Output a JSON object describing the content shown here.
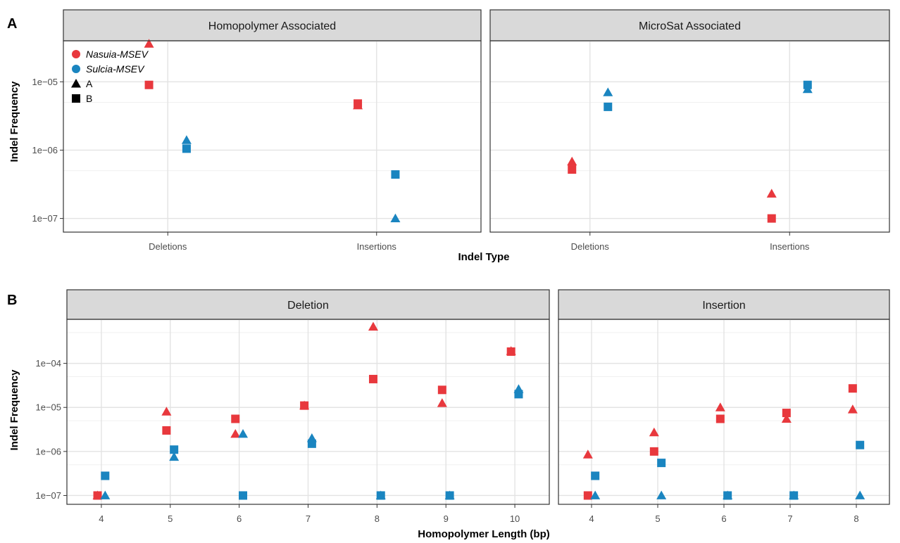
{
  "colors": {
    "nasuia": "#e8383d",
    "sulcia": "#1a85c0"
  },
  "legend": {
    "color_entries": [
      {
        "label": "Nasuia-MSEV",
        "color": "#e8383d"
      },
      {
        "label": "Sulcia-MSEV",
        "color": "#1a85c0"
      }
    ],
    "shape_entries": [
      {
        "label": "A",
        "shape": "triangle"
      },
      {
        "label": "B",
        "shape": "square"
      }
    ]
  },
  "chart_data": [
    {
      "panel_label": "A",
      "type": "scatter",
      "y_scale": "log10",
      "ylim": [
        1e-07,
        5e-05
      ],
      "ylabel": "Indel Frequency",
      "xlabel": "Indel Type",
      "y_ticks": [
        "1e−07",
        "1e−06",
        "1e−05"
      ],
      "categories": [
        "Deletions",
        "Insertions"
      ],
      "facets": [
        {
          "title": "Homopolymer Associated",
          "points": [
            {
              "x": "Deletions",
              "series": "Nasuia-MSEV",
              "replicate": "A",
              "y": 3.6e-05
            },
            {
              "x": "Deletions",
              "series": "Nasuia-MSEV",
              "replicate": "B",
              "y": 9e-06
            },
            {
              "x": "Deletions",
              "series": "Sulcia-MSEV",
              "replicate": "A",
              "y": 1.4e-06
            },
            {
              "x": "Deletions",
              "series": "Sulcia-MSEV",
              "replicate": "B",
              "y": 1.05e-06
            },
            {
              "x": "Insertions",
              "series": "Nasuia-MSEV",
              "replicate": "A",
              "y": 4.5e-06
            },
            {
              "x": "Insertions",
              "series": "Nasuia-MSEV",
              "replicate": "B",
              "y": 4.8e-06
            },
            {
              "x": "Insertions",
              "series": "Sulcia-MSEV",
              "replicate": "A",
              "y": 1e-07
            },
            {
              "x": "Insertions",
              "series": "Sulcia-MSEV",
              "replicate": "B",
              "y": 4.4e-07
            }
          ]
        },
        {
          "title": "MicroSat Associated",
          "points": [
            {
              "x": "Deletions",
              "series": "Nasuia-MSEV",
              "replicate": "A",
              "y": 6.8e-07
            },
            {
              "x": "Deletions",
              "series": "Nasuia-MSEV",
              "replicate": "B",
              "y": 5.2e-07
            },
            {
              "x": "Deletions",
              "series": "Sulcia-MSEV",
              "replicate": "A",
              "y": 7e-06
            },
            {
              "x": "Deletions",
              "series": "Sulcia-MSEV",
              "replicate": "B",
              "y": 4.3e-06
            },
            {
              "x": "Insertions",
              "series": "Nasuia-MSEV",
              "replicate": "A",
              "y": 2.3e-07
            },
            {
              "x": "Insertions",
              "series": "Nasuia-MSEV",
              "replicate": "B",
              "y": 1e-07
            },
            {
              "x": "Insertions",
              "series": "Sulcia-MSEV",
              "replicate": "A",
              "y": 7.8e-06
            },
            {
              "x": "Insertions",
              "series": "Sulcia-MSEV",
              "replicate": "B",
              "y": 9e-06
            }
          ]
        }
      ]
    },
    {
      "panel_label": "B",
      "type": "scatter",
      "y_scale": "log10",
      "ylim": [
        1e-07,
        0.001
      ],
      "ylabel": "Indel Frequency",
      "xlabel": "Homopolymer Length (bp)",
      "y_ticks": [
        "1e−07",
        "1e−06",
        "1e−05",
        "1e−04"
      ],
      "facets": [
        {
          "title": "Deletion",
          "x_ticks": [
            4,
            5,
            6,
            7,
            8,
            9,
            10
          ],
          "xlim": [
            3.5,
            10.5
          ],
          "points": [
            {
              "x": 4,
              "series": "Nasuia-MSEV",
              "replicate": "A",
              "y": 1e-07
            },
            {
              "x": 4,
              "series": "Nasuia-MSEV",
              "replicate": "B",
              "y": 1e-07
            },
            {
              "x": 4,
              "series": "Sulcia-MSEV",
              "replicate": "A",
              "y": 1e-07
            },
            {
              "x": 4,
              "series": "Sulcia-MSEV",
              "replicate": "B",
              "y": 2.8e-07
            },
            {
              "x": 5,
              "series": "Nasuia-MSEV",
              "replicate": "A",
              "y": 8e-06
            },
            {
              "x": 5,
              "series": "Nasuia-MSEV",
              "replicate": "B",
              "y": 3e-06
            },
            {
              "x": 5,
              "series": "Sulcia-MSEV",
              "replicate": "A",
              "y": 7.5e-07
            },
            {
              "x": 5,
              "series": "Sulcia-MSEV",
              "replicate": "B",
              "y": 1.1e-06
            },
            {
              "x": 6,
              "series": "Nasuia-MSEV",
              "replicate": "A",
              "y": 2.5e-06
            },
            {
              "x": 6,
              "series": "Nasuia-MSEV",
              "replicate": "B",
              "y": 5.5e-06
            },
            {
              "x": 6,
              "series": "Sulcia-MSEV",
              "replicate": "A",
              "y": 2.5e-06
            },
            {
              "x": 6,
              "series": "Sulcia-MSEV",
              "replicate": "B",
              "y": 1e-07
            },
            {
              "x": 7,
              "series": "Nasuia-MSEV",
              "replicate": "A",
              "y": 1.1e-05
            },
            {
              "x": 7,
              "series": "Nasuia-MSEV",
              "replicate": "B",
              "y": 1.1e-05
            },
            {
              "x": 7,
              "series": "Sulcia-MSEV",
              "replicate": "A",
              "y": 2e-06
            },
            {
              "x": 7,
              "series": "Sulcia-MSEV",
              "replicate": "B",
              "y": 1.5e-06
            },
            {
              "x": 8,
              "series": "Nasuia-MSEV",
              "replicate": "A",
              "y": 0.00068
            },
            {
              "x": 8,
              "series": "Nasuia-MSEV",
              "replicate": "B",
              "y": 4.4e-05
            },
            {
              "x": 8,
              "series": "Sulcia-MSEV",
              "replicate": "A",
              "y": 1e-07
            },
            {
              "x": 8,
              "series": "Sulcia-MSEV",
              "replicate": "B",
              "y": 1e-07
            },
            {
              "x": 9,
              "series": "Nasuia-MSEV",
              "replicate": "A",
              "y": 1.25e-05
            },
            {
              "x": 9,
              "series": "Nasuia-MSEV",
              "replicate": "B",
              "y": 2.5e-05
            },
            {
              "x": 9,
              "series": "Sulcia-MSEV",
              "replicate": "A",
              "y": 1e-07
            },
            {
              "x": 9,
              "series": "Sulcia-MSEV",
              "replicate": "B",
              "y": 1e-07
            },
            {
              "x": 10,
              "series": "Nasuia-MSEV",
              "replicate": "A",
              "y": 0.00019
            },
            {
              "x": 10,
              "series": "Nasuia-MSEV",
              "replicate": "B",
              "y": 0.000185
            },
            {
              "x": 10,
              "series": "Sulcia-MSEV",
              "replicate": "A",
              "y": 2.6e-05
            },
            {
              "x": 10,
              "series": "Sulcia-MSEV",
              "replicate": "B",
              "y": 2e-05
            }
          ]
        },
        {
          "title": "Insertion",
          "x_ticks": [
            4,
            5,
            6,
            7,
            8
          ],
          "xlim": [
            3.5,
            8.5
          ],
          "points": [
            {
              "x": 4,
              "series": "Nasuia-MSEV",
              "replicate": "A",
              "y": 8.5e-07
            },
            {
              "x": 4,
              "series": "Nasuia-MSEV",
              "replicate": "B",
              "y": 1e-07
            },
            {
              "x": 4,
              "series": "Sulcia-MSEV",
              "replicate": "A",
              "y": 1e-07
            },
            {
              "x": 4,
              "series": "Sulcia-MSEV",
              "replicate": "B",
              "y": 2.8e-07
            },
            {
              "x": 5,
              "series": "Nasuia-MSEV",
              "replicate": "A",
              "y": 2.7e-06
            },
            {
              "x": 5,
              "series": "Nasuia-MSEV",
              "replicate": "B",
              "y": 1e-06
            },
            {
              "x": 5,
              "series": "Sulcia-MSEV",
              "replicate": "A",
              "y": 1e-07
            },
            {
              "x": 5,
              "series": "Sulcia-MSEV",
              "replicate": "B",
              "y": 5.5e-07
            },
            {
              "x": 6,
              "series": "Nasuia-MSEV",
              "replicate": "A",
              "y": 1e-05
            },
            {
              "x": 6,
              "series": "Nasuia-MSEV",
              "replicate": "B",
              "y": 5.5e-06
            },
            {
              "x": 6,
              "series": "Sulcia-MSEV",
              "replicate": "A",
              "y": 1e-07
            },
            {
              "x": 6,
              "series": "Sulcia-MSEV",
              "replicate": "B",
              "y": 1e-07
            },
            {
              "x": 7,
              "series": "Nasuia-MSEV",
              "replicate": "A",
              "y": 5.5e-06
            },
            {
              "x": 7,
              "series": "Nasuia-MSEV",
              "replicate": "B",
              "y": 7.5e-06
            },
            {
              "x": 7,
              "series": "Sulcia-MSEV",
              "replicate": "A",
              "y": 1e-07
            },
            {
              "x": 7,
              "series": "Sulcia-MSEV",
              "replicate": "B",
              "y": 1e-07
            },
            {
              "x": 8,
              "series": "Nasuia-MSEV",
              "replicate": "A",
              "y": 9e-06
            },
            {
              "x": 8,
              "series": "Nasuia-MSEV",
              "replicate": "B",
              "y": 2.7e-05
            },
            {
              "x": 8,
              "series": "Sulcia-MSEV",
              "replicate": "A",
              "y": 1e-07
            },
            {
              "x": 8,
              "series": "Sulcia-MSEV",
              "replicate": "B",
              "y": 1.4e-06
            }
          ]
        }
      ]
    }
  ]
}
